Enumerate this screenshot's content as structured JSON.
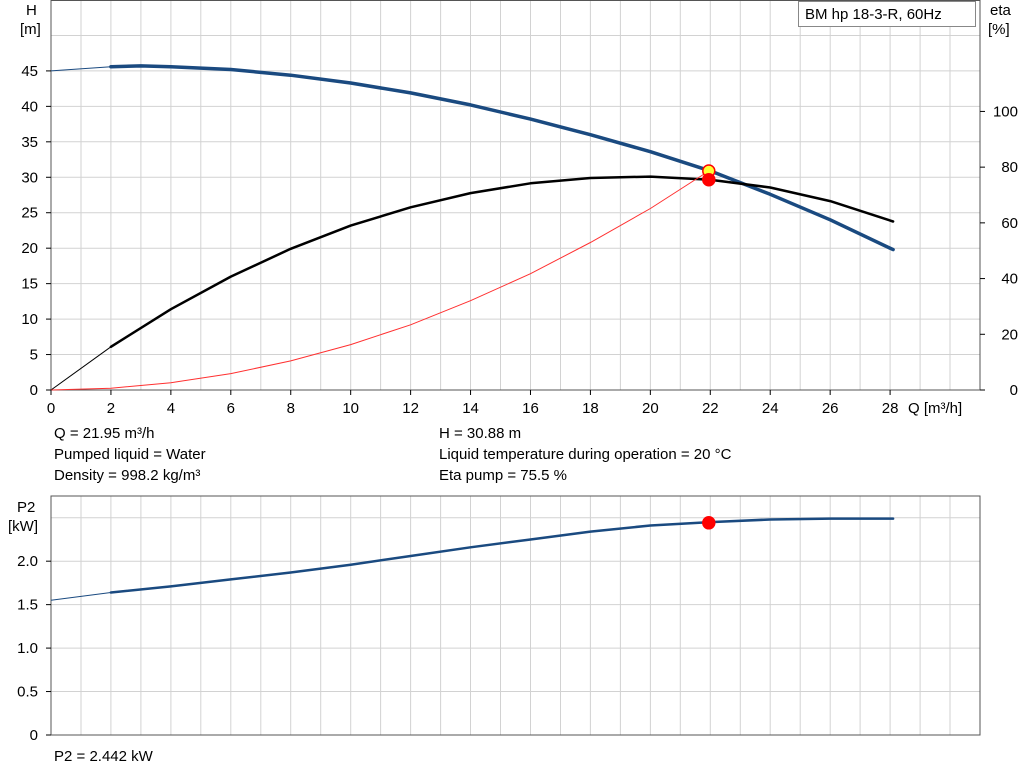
{
  "chart_data": [
    {
      "type": "line",
      "title": "BM hp  18-3-R, 60Hz",
      "xlabel": "Q [m³/h]",
      "ylabel": "H [m]",
      "ylabel_right": "eta [%]",
      "xlim": [
        0,
        31
      ],
      "ylim": [
        0,
        55
      ],
      "y2lim": [
        0,
        140
      ],
      "x_ticks": [
        0,
        2,
        4,
        6,
        8,
        10,
        12,
        14,
        16,
        18,
        20,
        22,
        24,
        26,
        28
      ],
      "y_ticks": [
        0,
        5,
        10,
        15,
        20,
        25,
        30,
        35,
        40,
        45
      ],
      "y2_ticks": [
        0,
        20,
        40,
        60,
        80,
        100
      ],
      "grid": true,
      "series": [
        {
          "axis": "left",
          "color": "#1a4a80",
          "x": [
            0,
            2,
            3,
            4,
            6,
            8,
            10,
            12,
            14,
            16,
            18,
            20,
            22,
            24,
            26,
            28.1
          ],
          "values": [
            45,
            45.6,
            45.7,
            45.6,
            45.2,
            44.4,
            43.3,
            41.9,
            40.2,
            38.2,
            36,
            33.6,
            30.9,
            27.6,
            24,
            19.8
          ]
        },
        {
          "axis": "right",
          "color": "#000000",
          "x": [
            0,
            2,
            4,
            6,
            8,
            10,
            12,
            14,
            16,
            18,
            20,
            22,
            24,
            26,
            28.1
          ],
          "values": [
            0,
            15.5,
            29,
            40.7,
            50.7,
            59,
            65.6,
            70.7,
            74.2,
            76.1,
            76.6,
            75.5,
            72.7,
            67.8,
            60.5
          ]
        },
        {
          "axis": "left",
          "color": "#ff3030",
          "x": [
            0,
            2,
            4,
            6,
            8,
            10,
            12,
            14,
            16,
            18,
            20,
            21.95
          ],
          "values": [
            0,
            0.26,
            1.03,
            2.31,
            4.1,
            6.4,
            9.2,
            12.6,
            16.4,
            20.8,
            25.6,
            30.88
          ]
        }
      ],
      "operating_points": [
        {
          "x": 21.95,
          "y": 30.88,
          "axis": "left",
          "fill": "#ffff33",
          "stroke": "#ff0000"
        },
        {
          "x": 21.95,
          "y": 75.5,
          "axis": "right",
          "fill": "#ff0000",
          "stroke": "#ff0000"
        }
      ]
    },
    {
      "type": "line",
      "xlabel": "",
      "ylabel": "P2 [kW]",
      "xlim": [
        0,
        31
      ],
      "ylim": [
        0,
        2.75
      ],
      "y_ticks": [
        0,
        0.5,
        1.0,
        1.5,
        2.0
      ],
      "y_tick_labels": [
        "0",
        "0.5",
        "1.0",
        "1.5",
        "2.0"
      ],
      "grid": true,
      "series": [
        {
          "color": "#1a4a80",
          "x": [
            0,
            2,
            4,
            6,
            8,
            10,
            12,
            14,
            16,
            18,
            20,
            22,
            24,
            26,
            28.1
          ],
          "values": [
            1.55,
            1.64,
            1.71,
            1.79,
            1.87,
            1.96,
            2.06,
            2.16,
            2.25,
            2.34,
            2.41,
            2.45,
            2.48,
            2.49,
            2.49
          ]
        }
      ],
      "operating_points": [
        {
          "x": 21.95,
          "y": 2.442,
          "fill": "#ff0000",
          "stroke": "#ff0000"
        }
      ]
    }
  ],
  "labels": {
    "h_axis": "H",
    "h_unit": "[m]",
    "eta_axis": "eta",
    "eta_unit": "[%]",
    "q_axis": "Q [m³/h]",
    "p2_axis": "P2",
    "p2_unit": "[kW]"
  },
  "info": {
    "q": "Q = 21.95 m³/h",
    "h": "H = 30.88 m",
    "liquid": "Pumped liquid = Water",
    "temperature": "Liquid temperature during operation = 20 °C",
    "density": "Density = 998.2 kg/m³",
    "eta": "Eta pump = 75.5 %",
    "p2": "P2 = 2.442 kW"
  }
}
